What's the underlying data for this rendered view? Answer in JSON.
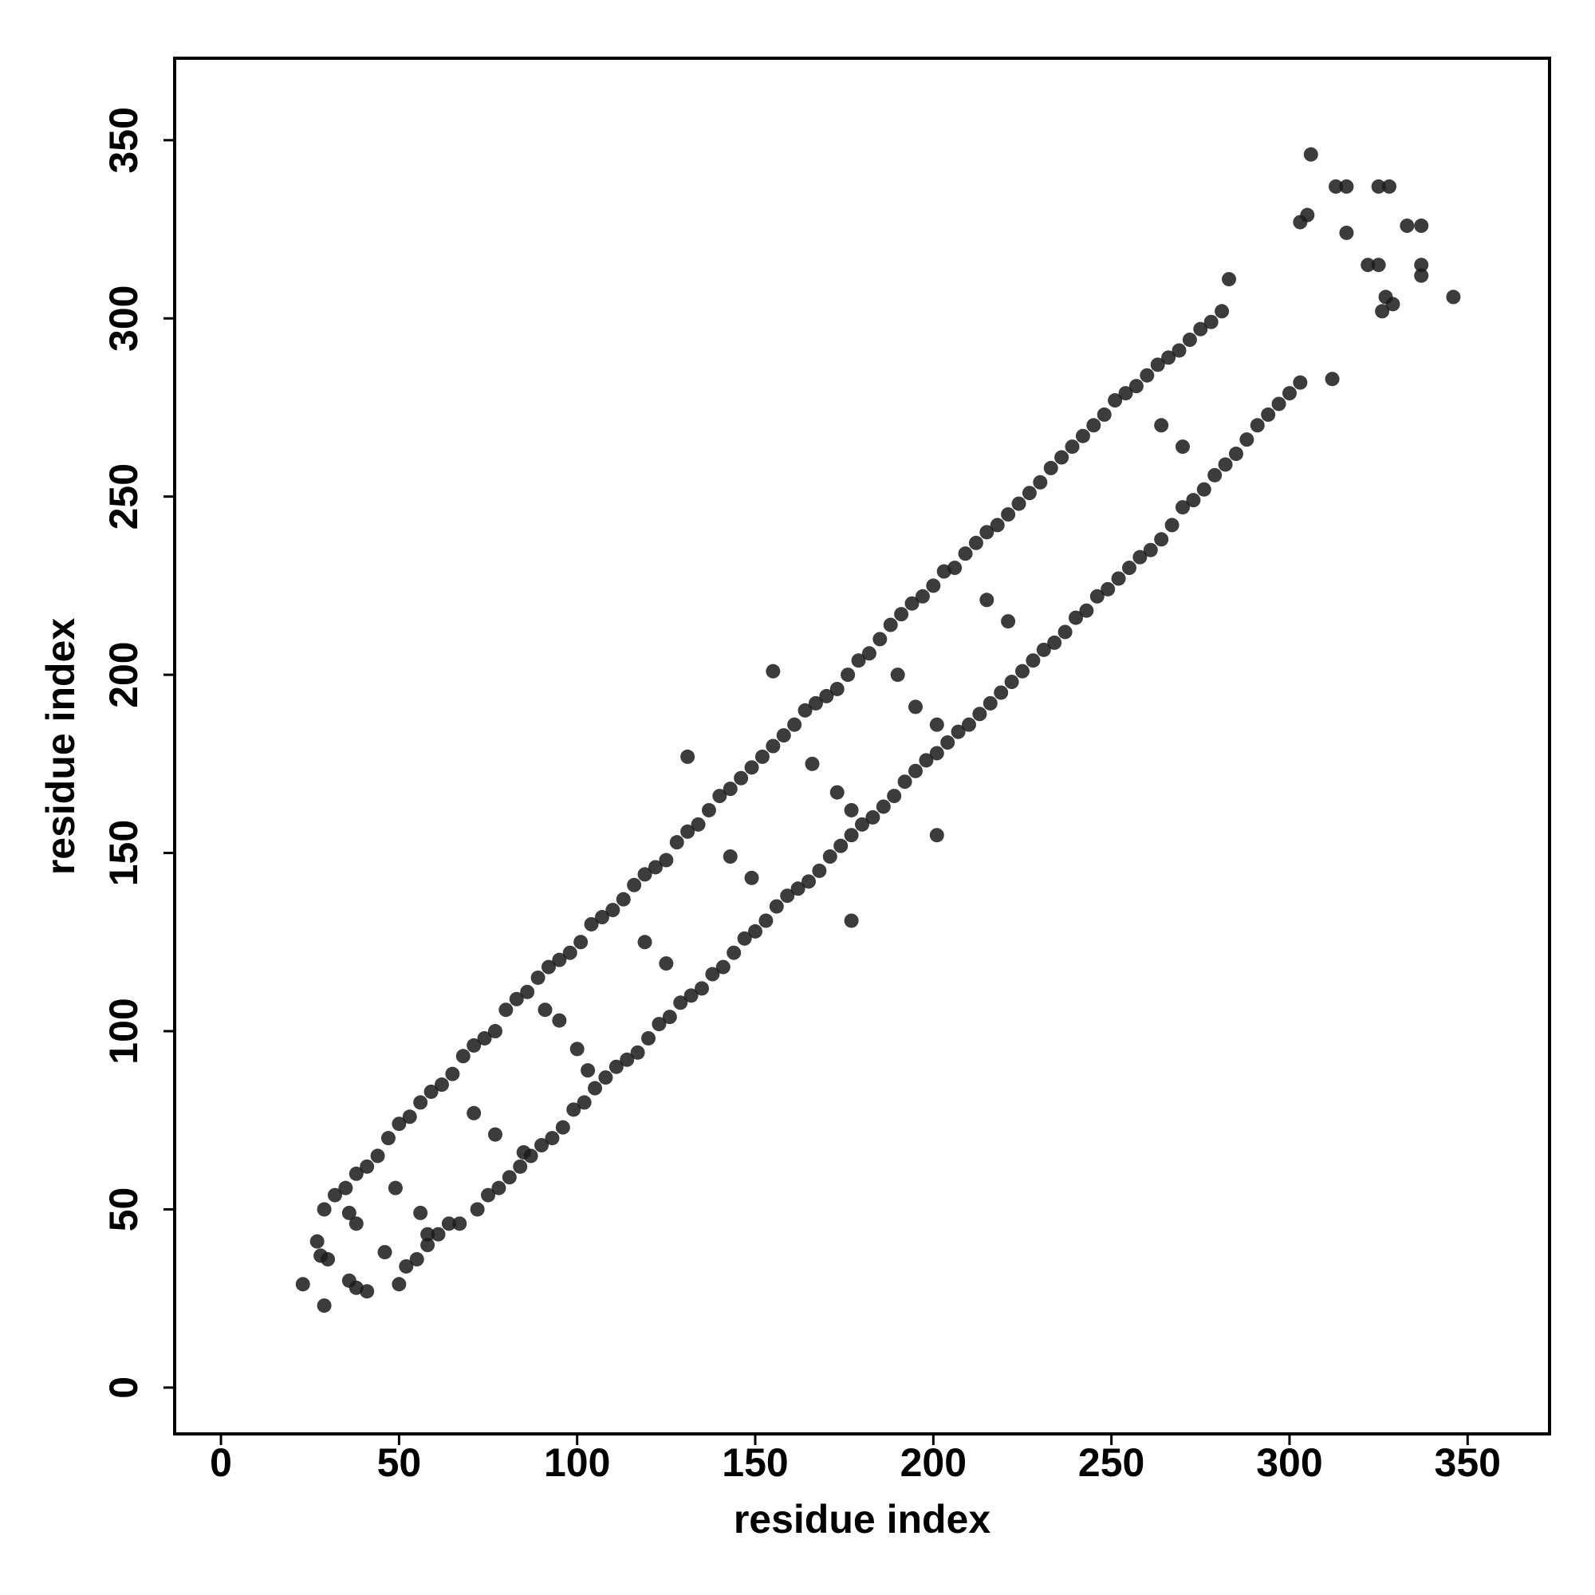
{
  "chart_data": {
    "type": "scatter",
    "x_label": "residue index",
    "y_label": "residue index",
    "color": "#1a1a1a",
    "xlim": [
      -13,
      373
    ],
    "ylim": [
      -13,
      373
    ],
    "xticks": [
      0,
      50,
      100,
      150,
      200,
      250,
      300,
      350
    ],
    "yticks": [
      0,
      50,
      100,
      150,
      200,
      250,
      300,
      350
    ],
    "x": [
      32,
      35,
      38,
      41,
      44,
      47,
      50,
      53,
      56,
      59,
      62,
      65,
      68,
      71,
      74,
      77,
      80,
      83,
      86,
      89,
      92,
      95,
      98,
      101,
      104,
      107,
      110,
      113,
      116,
      119,
      122,
      125,
      128,
      131,
      134,
      137,
      140,
      143,
      146,
      149,
      152,
      155,
      158,
      161,
      164,
      167,
      170,
      173,
      176,
      179,
      182,
      185,
      188,
      191,
      194,
      197,
      200,
      203,
      206,
      209,
      212,
      215,
      218,
      221,
      224,
      227,
      230,
      233,
      236,
      239,
      242,
      245,
      248,
      251,
      254,
      257,
      260,
      263,
      266,
      269,
      272,
      275,
      278,
      281,
      52,
      55,
      58,
      61,
      64,
      67,
      72,
      75,
      78,
      81,
      84,
      87,
      90,
      93,
      96,
      99,
      102,
      105,
      108,
      111,
      114,
      117,
      120,
      123,
      126,
      129,
      132,
      135,
      138,
      141,
      144,
      147,
      150,
      153,
      156,
      159,
      162,
      165,
      168,
      171,
      174,
      177,
      180,
      183,
      186,
      189,
      192,
      195,
      198,
      201,
      204,
      207,
      210,
      213,
      216,
      219,
      222,
      225,
      228,
      231,
      234,
      237,
      240,
      243,
      246,
      249,
      252,
      255,
      258,
      261,
      264,
      267,
      270,
      273,
      276,
      279,
      282,
      285,
      288,
      291,
      294,
      297,
      300,
      303,
      23,
      27,
      28,
      29,
      30,
      29,
      36,
      38,
      41,
      38,
      36,
      46,
      49,
      50,
      56,
      58,
      71,
      77,
      85,
      91,
      95,
      100,
      103,
      119,
      125,
      131,
      143,
      149,
      155,
      166,
      173,
      177,
      177,
      190,
      195,
      201,
      201,
      215,
      221,
      264,
      270,
      283,
      303,
      306,
      305,
      312,
      313,
      316,
      316,
      322,
      325,
      325,
      326,
      327,
      328,
      329,
      333,
      337,
      337,
      337,
      346
    ],
    "values": [
      54,
      56,
      60,
      62,
      65,
      70,
      74,
      76,
      80,
      83,
      85,
      88,
      93,
      96,
      98,
      100,
      106,
      109,
      111,
      115,
      118,
      120,
      122,
      125,
      130,
      132,
      134,
      137,
      141,
      144,
      146,
      148,
      153,
      156,
      158,
      162,
      166,
      168,
      171,
      174,
      177,
      180,
      183,
      186,
      190,
      192,
      194,
      196,
      200,
      204,
      206,
      210,
      214,
      217,
      220,
      222,
      225,
      229,
      230,
      234,
      237,
      240,
      242,
      245,
      248,
      251,
      254,
      258,
      261,
      264,
      267,
      270,
      273,
      277,
      279,
      281,
      284,
      287,
      289,
      291,
      294,
      297,
      299,
      302,
      34,
      36,
      40,
      43,
      46,
      46,
      50,
      54,
      56,
      59,
      62,
      65,
      68,
      70,
      73,
      78,
      80,
      84,
      87,
      90,
      92,
      94,
      98,
      102,
      104,
      108,
      110,
      112,
      116,
      118,
      122,
      126,
      128,
      131,
      135,
      138,
      140,
      142,
      145,
      149,
      152,
      155,
      158,
      160,
      163,
      166,
      170,
      173,
      176,
      178,
      181,
      184,
      186,
      189,
      192,
      195,
      198,
      201,
      204,
      207,
      209,
      212,
      216,
      218,
      222,
      224,
      227,
      230,
      233,
      235,
      238,
      242,
      247,
      249,
      252,
      256,
      259,
      262,
      266,
      270,
      273,
      276,
      279,
      282,
      29,
      41,
      37,
      23,
      36,
      50,
      30,
      28,
      27,
      46,
      49,
      38,
      56,
      29,
      49,
      43,
      77,
      71,
      66,
      106,
      103,
      95,
      89,
      125,
      119,
      177,
      149,
      143,
      201,
      175,
      167,
      131,
      162,
      200,
      191,
      155,
      186,
      221,
      215,
      270,
      264,
      311,
      327,
      346,
      329,
      283,
      337,
      324,
      337,
      315,
      315,
      337,
      302,
      306,
      337,
      304,
      326,
      326,
      315,
      312,
      306
    ]
  }
}
